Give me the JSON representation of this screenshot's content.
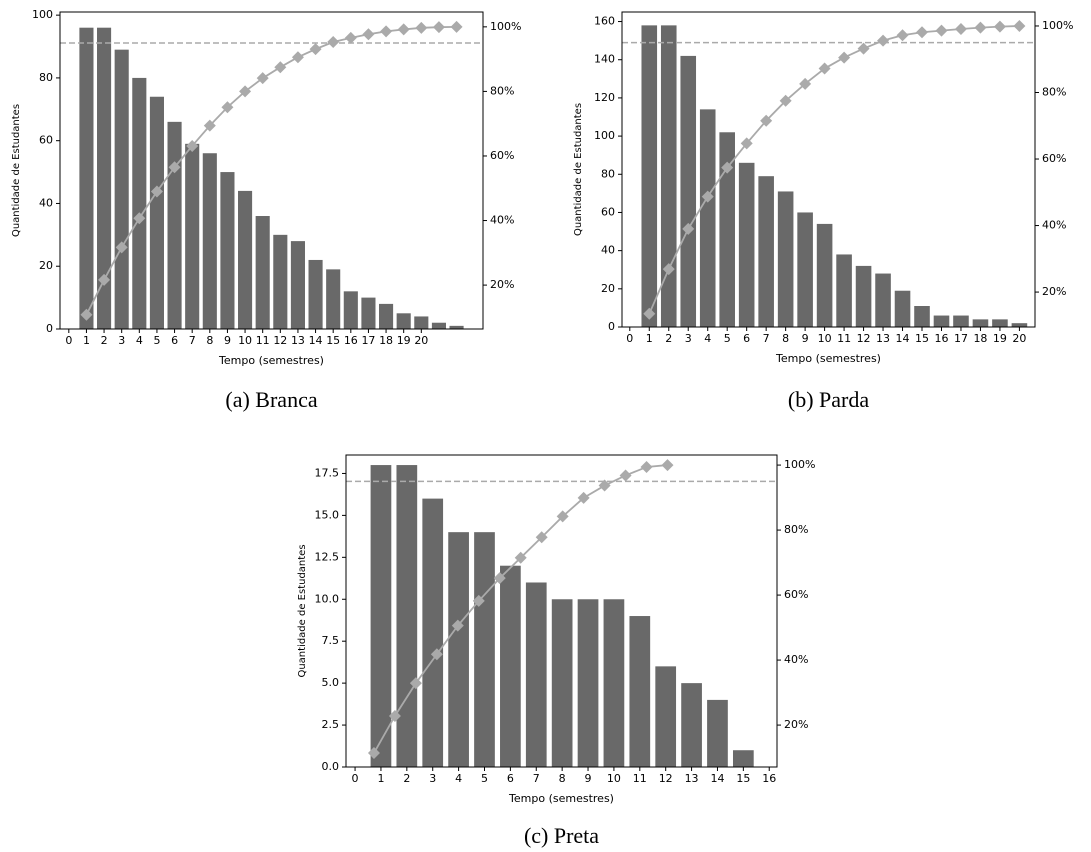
{
  "chart_data": [
    {
      "type": "pareto",
      "caption": "(a) Branca",
      "xlabel": "Tempo (semestres)",
      "ylabel": "Quantidade de Estudantes",
      "x": [
        1,
        2,
        3,
        4,
        5,
        6,
        7,
        8,
        9,
        10,
        11,
        12,
        13,
        14,
        15,
        16,
        17,
        18,
        19,
        20,
        21,
        22
      ],
      "values": [
        96,
        96,
        89,
        80,
        74,
        66,
        59,
        56,
        50,
        44,
        36,
        30,
        28,
        22,
        19,
        12,
        10,
        8,
        5,
        4,
        2,
        1
      ],
      "bar_color": "#696969",
      "cumulative": {
        "x": [
          1,
          2,
          3,
          4,
          5,
          6,
          7,
          8,
          9,
          10,
          11,
          12,
          13,
          14,
          15,
          16,
          17,
          18,
          19,
          20,
          21,
          22
        ],
        "values": [
          10.8,
          21.6,
          31.7,
          40.7,
          49.0,
          56.5,
          63.1,
          69.4,
          75.1,
          80.0,
          84.1,
          87.5,
          90.6,
          93.1,
          95.3,
          96.6,
          97.7,
          98.6,
          99.2,
          99.7,
          99.9,
          100
        ],
        "color": "#aaaaaa",
        "axis": "y2"
      },
      "threshold": 95,
      "xlim": [
        -0.5,
        23.5
      ],
      "xticks": [
        0,
        1,
        2,
        3,
        4,
        5,
        6,
        7,
        8,
        9,
        10,
        11,
        12,
        13,
        14,
        15,
        16,
        17,
        18,
        19,
        20
      ],
      "ylim": [
        0,
        101
      ],
      "yticks": [
        0,
        20,
        40,
        60,
        80,
        100
      ],
      "y2lim": [
        6.4,
        104.6
      ],
      "y2ticks": [
        {
          "value": 20,
          "label": "20%"
        },
        {
          "value": 40,
          "label": "40%"
        },
        {
          "value": 60,
          "label": "60%"
        },
        {
          "value": 80,
          "label": "80%"
        },
        {
          "value": 100,
          "label": "100%"
        }
      ]
    },
    {
      "type": "pareto",
      "caption": "(b) Parda",
      "xlabel": "Tempo (semestres)",
      "ylabel": "Quantidade de Estudantes",
      "x": [
        1,
        2,
        3,
        4,
        5,
        6,
        7,
        8,
        9,
        10,
        11,
        12,
        13,
        14,
        15,
        16,
        17,
        18,
        19,
        20
      ],
      "values": [
        158,
        158,
        142,
        114,
        102,
        86,
        79,
        71,
        60,
        54,
        38,
        32,
        28,
        19,
        11,
        6,
        6,
        4,
        4,
        2
      ],
      "bar_color": "#696969",
      "cumulative": {
        "x": [
          1,
          2,
          3,
          4,
          5,
          6,
          7,
          8,
          9,
          10,
          11,
          12,
          13,
          14,
          15,
          16,
          17,
          18,
          19,
          20
        ],
        "values": [
          13.5,
          26.9,
          39.0,
          48.7,
          57.4,
          64.7,
          71.5,
          77.5,
          82.6,
          87.2,
          90.5,
          93.2,
          95.6,
          97.2,
          98.1,
          98.6,
          99.1,
          99.5,
          99.8,
          100
        ],
        "color": "#aaaaaa",
        "axis": "y2"
      },
      "threshold": 95,
      "xlim": [
        -0.4,
        20.8
      ],
      "xticks": [
        0,
        1,
        2,
        3,
        4,
        5,
        6,
        7,
        8,
        9,
        10,
        11,
        12,
        13,
        14,
        15,
        16,
        17,
        18,
        19,
        20
      ],
      "ylim": [
        0,
        165
      ],
      "yticks": [
        0,
        20,
        40,
        60,
        80,
        100,
        120,
        140,
        160
      ],
      "y2lim": [
        9.5,
        104.2
      ],
      "y2ticks": [
        {
          "value": 20,
          "label": "20%"
        },
        {
          "value": 40,
          "label": "40%"
        },
        {
          "value": 60,
          "label": "60%"
        },
        {
          "value": 80,
          "label": "80%"
        },
        {
          "value": 100,
          "label": "100%"
        }
      ]
    },
    {
      "type": "pareto",
      "caption": "(c) Preta",
      "xlabel": "Tempo (semestres)",
      "ylabel": "Quantidade de Estudantes",
      "x": [
        1,
        2,
        3,
        4,
        5,
        6,
        7,
        8,
        9,
        10,
        11,
        12,
        13,
        14,
        15
      ],
      "values": [
        18,
        18,
        16,
        14,
        14,
        12,
        11,
        10,
        10,
        10,
        9,
        6,
        5,
        4,
        1
      ],
      "bar_color": "#696969",
      "cumulative": {
        "x": [
          0.73,
          1.54,
          2.35,
          3.16,
          3.97,
          4.78,
          5.59,
          6.4,
          7.21,
          8.02,
          8.83,
          9.64,
          10.45,
          11.26,
          12.07
        ],
        "values": [
          11.4,
          22.8,
          32.9,
          41.8,
          50.6,
          58.2,
          65.2,
          71.5,
          77.8,
          84.2,
          89.9,
          93.7,
          96.8,
          99.4,
          100
        ],
        "color": "#aaaaaa",
        "axis": "y2"
      },
      "threshold": 95,
      "xlim": [
        -0.35,
        16.3
      ],
      "xticks": [
        0,
        1,
        2,
        3,
        4,
        5,
        6,
        7,
        8,
        9,
        10,
        11,
        12,
        13,
        14,
        15,
        16
      ],
      "ylim": [
        0,
        18.6
      ],
      "yticks": [
        {
          "value": 0,
          "label": "0.0"
        },
        2.5,
        {
          "value": 5,
          "label": "5.0"
        },
        7.5,
        {
          "value": 10,
          "label": "10.0"
        },
        12.5,
        {
          "value": 15,
          "label": "15.0"
        },
        17.5
      ],
      "y2lim": [
        7.1,
        103.1
      ],
      "y2ticks": [
        {
          "value": 20,
          "label": "20%"
        },
        {
          "value": 40,
          "label": "40%"
        },
        {
          "value": 60,
          "label": "60%"
        },
        {
          "value": 80,
          "label": "80%"
        },
        {
          "value": 100,
          "label": "100%"
        }
      ]
    }
  ]
}
